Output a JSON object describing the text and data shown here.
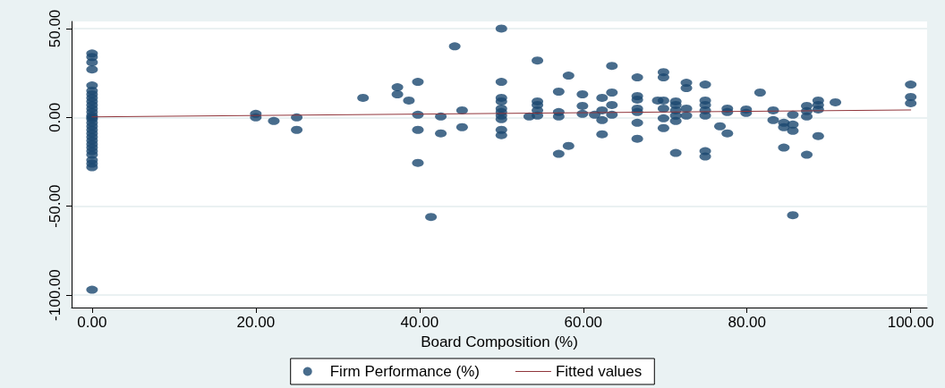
{
  "chart_data": {
    "type": "scatter",
    "xlabel": "Board Composition (%)",
    "xlim": [
      -2.5,
      102
    ],
    "ylim": [
      -107,
      54
    ],
    "xticks": [
      {
        "value": 0,
        "label": "0.00"
      },
      {
        "value": 20,
        "label": "20.00"
      },
      {
        "value": 40,
        "label": "40.00"
      },
      {
        "value": 60,
        "label": "60.00"
      },
      {
        "value": 80,
        "label": "80.00"
      },
      {
        "value": 100,
        "label": "100.00"
      }
    ],
    "yticks": [
      {
        "value": -100,
        "label": "-100.00"
      },
      {
        "value": -50,
        "label": "-50.00"
      },
      {
        "value": 0,
        "label": "0.00"
      },
      {
        "value": 50,
        "label": "50.00"
      }
    ],
    "grid": "y",
    "legend": "bottom",
    "series": [
      {
        "name": "Firm Performance (%)",
        "color": "#1a476f",
        "marker": "circle",
        "x": [
          0,
          0,
          0,
          0,
          0,
          0,
          0,
          0,
          0,
          0,
          0,
          0,
          0,
          0,
          0,
          0,
          0,
          0,
          0,
          0,
          0,
          0,
          0,
          0,
          0,
          0,
          0,
          0,
          0,
          20,
          20,
          22.2,
          25,
          25,
          33.1,
          37.3,
          37.3,
          38.7,
          39.8,
          39.8,
          39.8,
          39.8,
          41.4,
          42.6,
          42.6,
          44.3,
          45.2,
          45.2,
          50,
          50,
          50,
          50,
          50,
          50,
          50,
          50,
          50,
          50,
          54.4,
          54.4,
          54.4,
          54.4,
          54.4,
          53.4,
          57,
          57,
          57,
          57,
          58.2,
          58.2,
          59.9,
          59.9,
          59.9,
          61.4,
          62.3,
          62.3,
          62.3,
          62.3,
          63.5,
          63.5,
          63.5,
          63.5,
          66.6,
          66.6,
          66.6,
          66.6,
          66.6,
          66.6,
          66.6,
          69.1,
          69.8,
          69.8,
          69.8,
          69.8,
          69.8,
          69.8,
          71.3,
          71.3,
          71.3,
          71.3,
          71.3,
          71.3,
          72.6,
          72.6,
          72.6,
          72.6,
          74.9,
          74.9,
          74.9,
          74.9,
          74.9,
          74.9,
          74.9,
          76.7,
          77.6,
          77.6,
          77.6,
          79.9,
          79.9,
          81.6,
          83.2,
          83.2,
          84.5,
          84.5,
          84.5,
          85.6,
          85.6,
          85.6,
          85.6,
          87.3,
          87.3,
          87.3,
          87.3,
          88.7,
          88.7,
          88.7,
          88.7,
          90.8,
          100,
          100,
          100
        ],
        "values": [
          36,
          34,
          31,
          27,
          18,
          15,
          13,
          11,
          9,
          7,
          5,
          3,
          1,
          0,
          -1,
          -3,
          -5,
          -7,
          -9,
          -11,
          -13,
          -15,
          -17,
          -19,
          -21,
          -24,
          -26,
          -28,
          -97,
          2,
          0,
          -2,
          0,
          -7,
          11,
          17,
          13,
          9.5,
          20,
          1.5,
          -7,
          -25.6,
          -56,
          0.5,
          -9,
          40,
          4,
          -5.5,
          50,
          20,
          11,
          9,
          5,
          3,
          1,
          -1,
          -7,
          -10,
          32,
          9,
          7,
          4,
          1,
          0.5,
          14.5,
          3,
          0.5,
          -20.5,
          23.5,
          -16,
          13,
          6.5,
          2,
          1.5,
          11,
          4,
          -1.5,
          -9.5,
          29,
          14,
          7,
          1.5,
          22.5,
          12,
          10,
          5,
          3,
          -3,
          -12,
          9.5,
          25.5,
          22.5,
          9.5,
          5,
          -0.5,
          -6,
          9,
          7,
          4,
          1,
          -2,
          -20,
          19.5,
          16.5,
          5,
          1,
          18.5,
          9.5,
          7,
          4,
          1,
          -19,
          -22,
          -5,
          -9,
          5,
          3,
          4.5,
          2.5,
          14,
          4,
          -1.5,
          -3,
          -5.5,
          -17,
          1.5,
          -4,
          -7.5,
          -55,
          6.5,
          3.5,
          0.5,
          -21,
          9.5,
          7,
          4.5,
          -10.5,
          8.5,
          18.5,
          11.5,
          8
        ]
      },
      {
        "name": "Fitted values",
        "type": "line",
        "color": "#90353b",
        "marker": "none",
        "line_style": "solid",
        "x": [
          0,
          100
        ],
        "values": [
          0.3,
          4.2
        ]
      }
    ]
  }
}
